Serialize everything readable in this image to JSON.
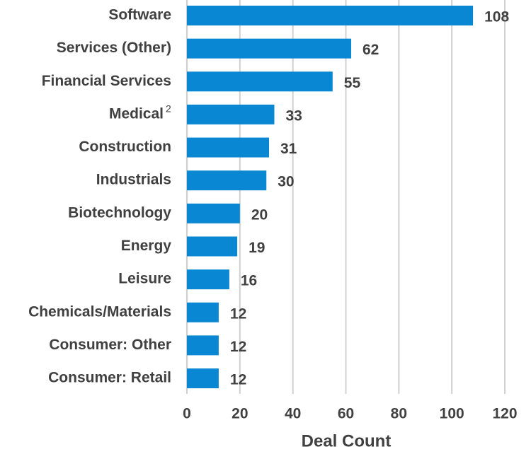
{
  "chart_data": {
    "type": "barh",
    "categories": [
      "Software",
      "Services (Other)",
      "Financial Services",
      "Medical",
      "Construction",
      "Industrials",
      "Biotechnology",
      "Energy",
      "Leisure",
      "Chemicals/Materials",
      "Consumer: Other",
      "Consumer: Retail"
    ],
    "category_superscripts": [
      null,
      null,
      null,
      "2",
      null,
      null,
      null,
      null,
      null,
      null,
      null,
      null
    ],
    "values": [
      108,
      62,
      55,
      33,
      31,
      30,
      20,
      19,
      16,
      12,
      12,
      12
    ],
    "color": "#0a87d2",
    "xlabel": "Deal Count",
    "xlim": [
      0,
      120
    ],
    "xticks": [
      0,
      20,
      40,
      60,
      80,
      100,
      120
    ],
    "grid": true
  }
}
